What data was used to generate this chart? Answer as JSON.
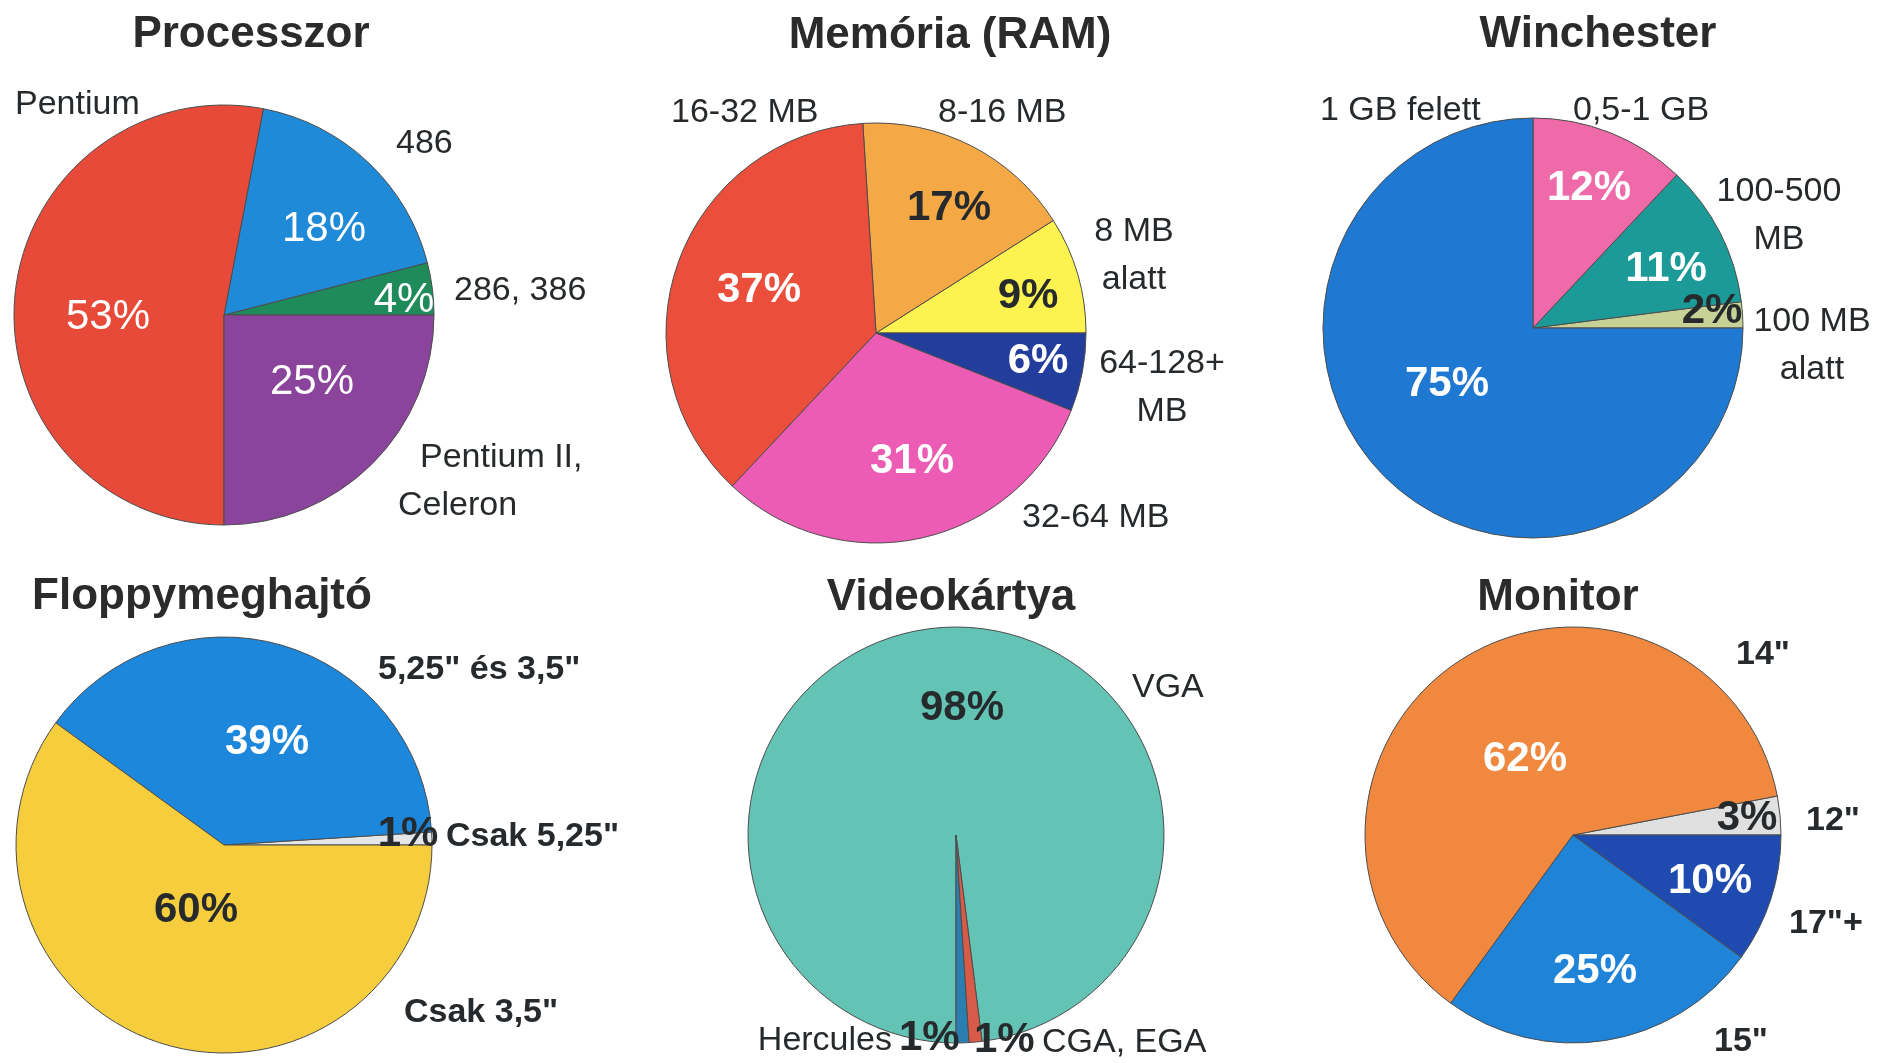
{
  "chart_data": [
    {
      "type": "pie",
      "title": "Processzor",
      "categories": [
        "286, 386",
        "486",
        "Pentium",
        "Pentium II, Celeron"
      ],
      "values": [
        4,
        18,
        53,
        25
      ],
      "colors": [
        "#1f8a5a",
        "#1e8ad8",
        "#e84a3a",
        "#8b449b"
      ],
      "value_labels": [
        "4%",
        "18%",
        "53%",
        "25%"
      ]
    },
    {
      "type": "pie",
      "title": "Memória (RAM)",
      "categories": [
        "8 MB alatt",
        "8-16 MB",
        "16-32 MB",
        "32-64 MB",
        "64-128+ MB"
      ],
      "values": [
        9,
        17,
        37,
        31,
        6
      ],
      "colors": [
        "#fdf350",
        "#f4a846",
        "#ec4e3c",
        "#ec5cb4",
        "#233d9c"
      ],
      "value_labels": [
        "9%",
        "17%",
        "37%",
        "31%",
        "6%"
      ]
    },
    {
      "type": "pie",
      "title": "Winchester",
      "categories": [
        "100 MB alatt",
        "100-500 MB",
        "0,5-1 GB",
        "1 GB felett"
      ],
      "values": [
        2,
        11,
        12,
        75
      ],
      "colors": [
        "#c8d296",
        "#1b9a98",
        "#ee6aa8",
        "#1f78d2"
      ],
      "value_labels": [
        "2%",
        "11%",
        "12%",
        "75%"
      ]
    },
    {
      "type": "pie",
      "title": "Floppymeghajtó",
      "categories": [
        "Csak 5,25\"",
        "5,25\" és 3,5\"",
        "Csak 3,5\""
      ],
      "values": [
        1,
        39,
        60
      ],
      "colors": [
        "#e4e6e8",
        "#1d87dc",
        "#f6cd3c"
      ],
      "value_labels": [
        "1%",
        "39%",
        "60%"
      ]
    },
    {
      "type": "pie",
      "title": "Videokártya",
      "categories": [
        "VGA",
        "Hercules",
        "CGA, EGA"
      ],
      "values": [
        98,
        1,
        1
      ],
      "colors": [
        "#63c3b4",
        "#2a7fb0",
        "#d85a48"
      ],
      "value_labels": [
        "98%",
        "1%",
        "1%"
      ]
    },
    {
      "type": "pie",
      "title": "Monitor",
      "categories": [
        "12\"",
        "14\"",
        "15\"",
        "17\"+"
      ],
      "values": [
        3,
        62,
        25,
        10
      ],
      "colors": [
        "#e0e0e0",
        "#f0883f",
        "#1f84d8",
        "#1f4bb0"
      ],
      "value_labels": [
        "3%",
        "62%",
        "25%",
        "10%"
      ]
    }
  ]
}
